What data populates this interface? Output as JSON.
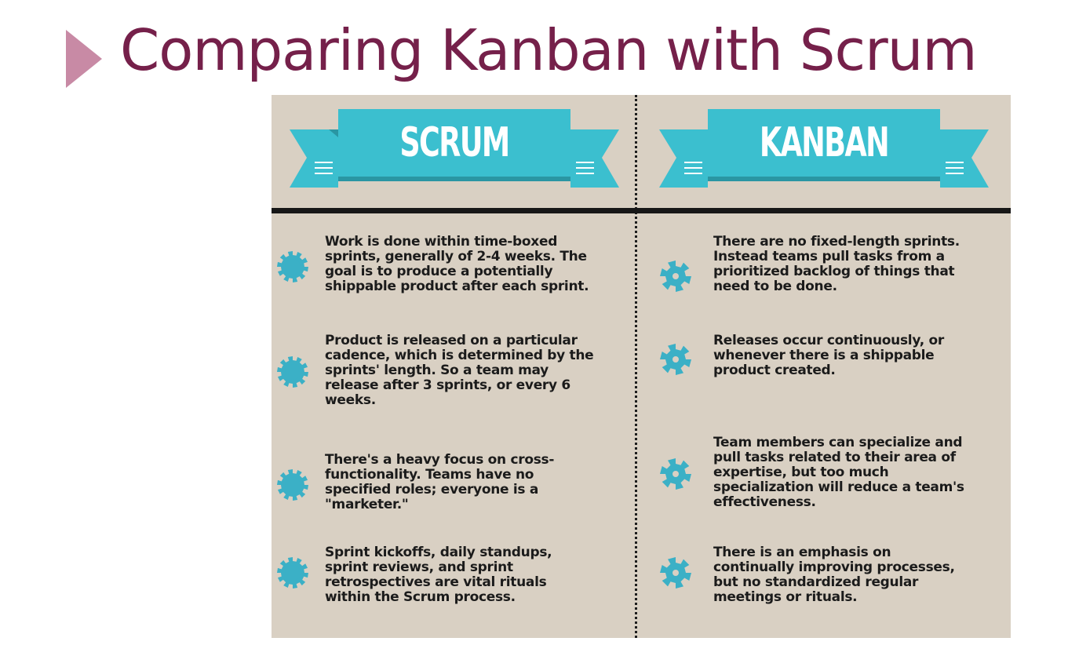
{
  "slide": {
    "title": "Comparing Kanban with Scrum"
  },
  "colors": {
    "title": "#75204a",
    "marker": "#c88aa5",
    "panel_background": "#d9d0c3",
    "banner": "#3bbfcf",
    "gear": "#3bb0c6"
  },
  "infographic": {
    "scrum": {
      "banner_label": "SCRUM",
      "items": [
        {
          "icon": "gear-icon",
          "lines": [
            "Work is done within time-boxed",
            "sprints, generally of 2-4 weeks. The",
            "goal is to produce a potentially",
            "shippable product after each sprint."
          ]
        },
        {
          "icon": "gear-icon",
          "lines": [
            "Product is released on a particular",
            "cadence, which is determined by the",
            "sprints' length. So a team may",
            "release after 3 sprints, or every 6",
            "weeks."
          ]
        },
        {
          "icon": "gear-icon",
          "lines": [
            "There's a heavy focus on cross-",
            "functionality. Teams have no",
            "specified roles; everyone is a",
            "\"marketer.\""
          ]
        },
        {
          "icon": "gear-icon",
          "lines": [
            "Sprint kickoffs, daily standups,",
            "sprint reviews, and sprint",
            "retrospectives are vital rituals",
            "within the Scrum process."
          ]
        }
      ]
    },
    "kanban": {
      "banner_label": "KANBAN",
      "items": [
        {
          "icon": "gear-icon",
          "lines": [
            "There are no fixed-length sprints.",
            "Instead teams pull tasks from a",
            "prioritized backlog of things that",
            "need to be done."
          ]
        },
        {
          "icon": "gear-icon",
          "lines": [
            "Releases occur continuously, or",
            "whenever there is a shippable",
            "product created."
          ]
        },
        {
          "icon": "gear-icon",
          "lines": [
            "Team members can specialize and",
            "pull tasks related to their area of",
            "expertise, but too much",
            "specialization will reduce a team's",
            "effectiveness."
          ]
        },
        {
          "icon": "gear-icon",
          "lines": [
            "There is an emphasis on",
            "continually improving processes,",
            "but no standardized regular",
            "meetings or rituals."
          ]
        }
      ]
    }
  }
}
